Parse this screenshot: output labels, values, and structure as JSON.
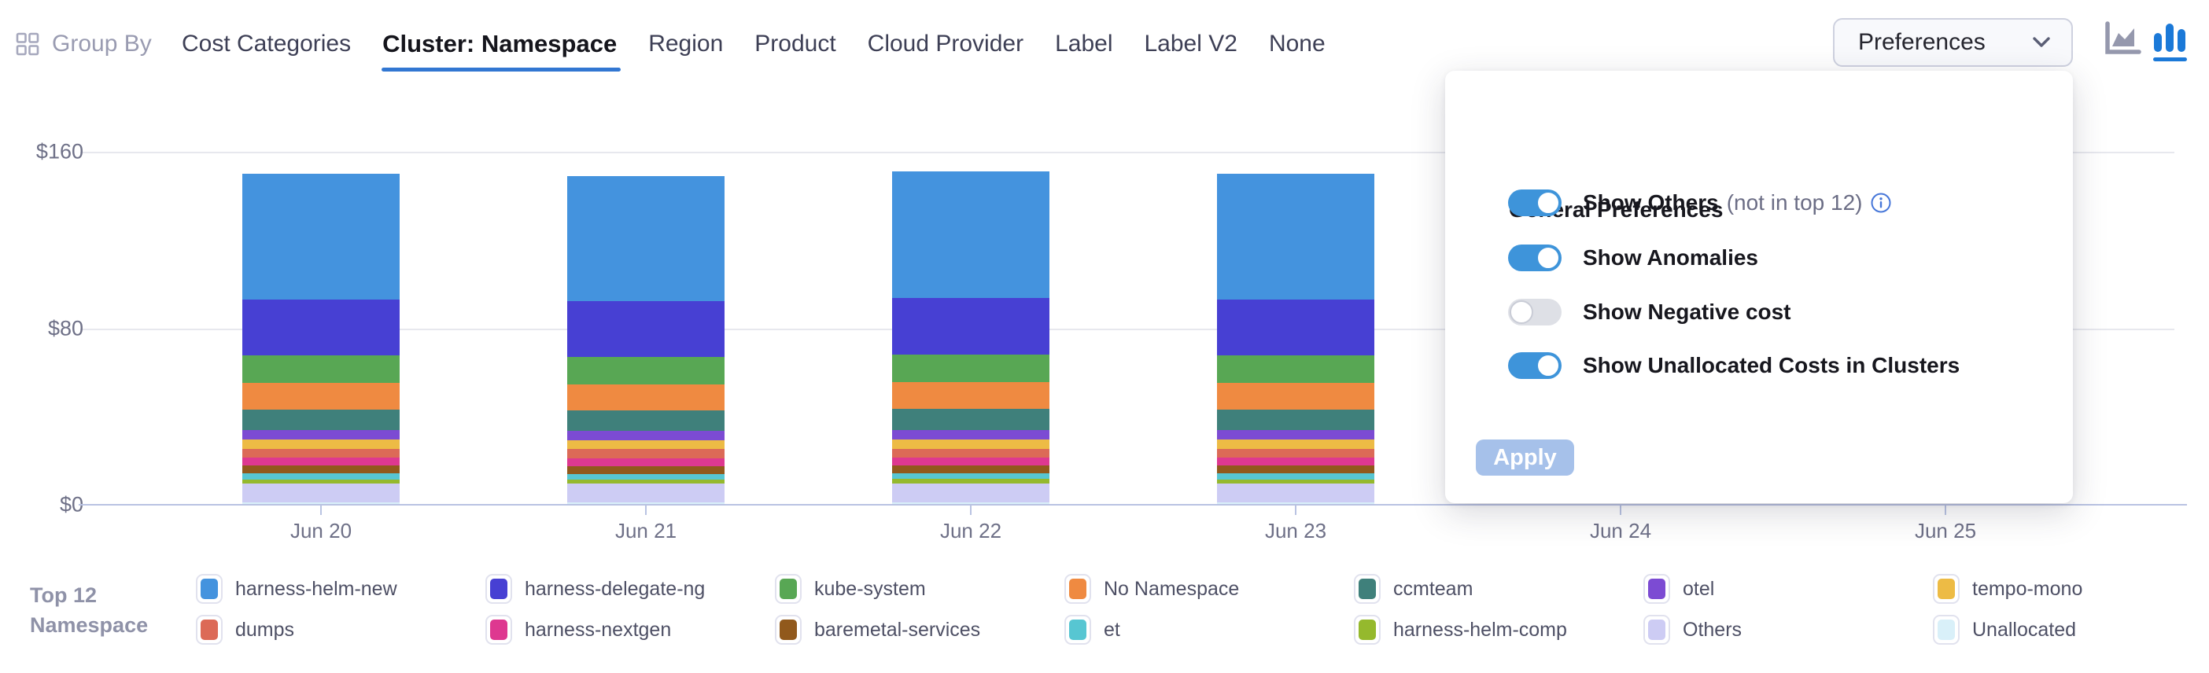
{
  "header": {
    "group_by_label": "Group By",
    "tabs": [
      {
        "label": "Cost Categories",
        "active": false
      },
      {
        "label": "Cluster: Namespace",
        "active": true
      },
      {
        "label": "Region",
        "active": false
      },
      {
        "label": "Product",
        "active": false
      },
      {
        "label": "Cloud Provider",
        "active": false
      },
      {
        "label": "Label",
        "active": false
      },
      {
        "label": "Label V2",
        "active": false
      },
      {
        "label": "None",
        "active": false
      }
    ],
    "preferences_label": "Preferences",
    "view_toggle": [
      {
        "icon": "area-chart-icon",
        "active": false
      },
      {
        "icon": "bar-chart-icon",
        "active": true
      }
    ]
  },
  "preferences_panel": {
    "title": "General Preferences",
    "toggles": [
      {
        "label": "Show Others",
        "suffix": "(not in top 12)",
        "has_info_icon": true,
        "on": true
      },
      {
        "label": "Show Anomalies",
        "suffix": "",
        "has_info_icon": false,
        "on": true
      },
      {
        "label": "Show Negative cost",
        "suffix": "",
        "has_info_icon": false,
        "on": false
      },
      {
        "label": "Show Unallocated Costs in Clusters",
        "suffix": "",
        "has_info_icon": false,
        "on": true
      }
    ],
    "apply_label": "Apply",
    "apply_enabled": false
  },
  "legend": {
    "title_line1": "Top 12",
    "title_line2": "Namespace"
  },
  "chart_data": {
    "type": "bar",
    "stacked": true,
    "title": "",
    "xlabel": "",
    "ylabel": "",
    "categories": [
      "Jun 20",
      "Jun 21",
      "Jun 22",
      "Jun 23",
      "Jun 24",
      "Jun 25"
    ],
    "y_axis": {
      "unit": "$",
      "range": [
        0,
        160
      ],
      "ticks": [
        {
          "label": "$0",
          "value": 0
        },
        {
          "label": "$80",
          "value": 80
        },
        {
          "label": "$160",
          "value": 160
        }
      ]
    },
    "grid": true,
    "legend_position": "bottom",
    "series": [
      {
        "name": "harness-helm-new",
        "color": "#4493DE",
        "values": [
          57,
          56.5,
          57.5,
          57,
          null,
          null
        ]
      },
      {
        "name": "harness-delegate-ng",
        "color": "#4740D3",
        "values": [
          25.5,
          25.3,
          25.6,
          25.5,
          null,
          null
        ]
      },
      {
        "name": "kube-system",
        "color": "#58A754",
        "values": [
          12.5,
          12.4,
          12.6,
          12.5,
          null,
          null
        ]
      },
      {
        "name": "No Namespace",
        "color": "#EF8A41",
        "values": [
          11.9,
          11.8,
          12,
          11.9,
          null,
          null
        ]
      },
      {
        "name": "ccmteam",
        "color": "#3F807B",
        "values": [
          9.5,
          9.4,
          9.6,
          9.5,
          null,
          null
        ]
      },
      {
        "name": "otel",
        "color": "#7C4BD3",
        "values": [
          4.2,
          4.2,
          4.2,
          4.2,
          null,
          null
        ]
      },
      {
        "name": "tempo-mono",
        "color": "#EDBB45",
        "values": [
          4.2,
          4.1,
          4.2,
          4.2,
          null,
          null
        ]
      },
      {
        "name": "dumps",
        "color": "#DC6A57",
        "values": [
          4.1,
          4.1,
          4.1,
          4.1,
          null,
          null
        ]
      },
      {
        "name": "harness-nextgen",
        "color": "#DE3890",
        "values": [
          3.6,
          3.6,
          3.6,
          3.6,
          null,
          null
        ]
      },
      {
        "name": "baremetal-services",
        "color": "#91591C",
        "values": [
          3.6,
          3.5,
          3.6,
          3.6,
          null,
          null
        ]
      },
      {
        "name": "et",
        "color": "#57C6D2",
        "values": [
          2.6,
          2.6,
          2.6,
          2.6,
          null,
          null
        ]
      },
      {
        "name": "harness-helm-comp",
        "color": "#95B92D",
        "values": [
          1.9,
          1.9,
          1.9,
          1.9,
          null,
          null
        ]
      },
      {
        "name": "Others",
        "color": "#CDCCF4",
        "values": [
          8.5,
          8.4,
          8.6,
          8.5,
          null,
          null
        ]
      },
      {
        "name": "Unallocated",
        "color": "#D9F0F9",
        "values": [
          0.7,
          0.7,
          0.7,
          0.7,
          null,
          null
        ]
      }
    ]
  },
  "colors": {
    "accent_blue": "#0278D5",
    "underline_blue": "#3277D2",
    "toggle_on": "#3E94DA",
    "toggle_off_track": "#DEE0E6",
    "apply_disabled": "#A6C1EA",
    "gridline": "#E7E8EE",
    "axis_line": "#B9C3E2",
    "axis_text": "#6E7087",
    "muted_text": "#8F92A8",
    "legend_text": "#4E5065",
    "icon_gray": "#9598AD",
    "info_icon": "#4777D9"
  }
}
